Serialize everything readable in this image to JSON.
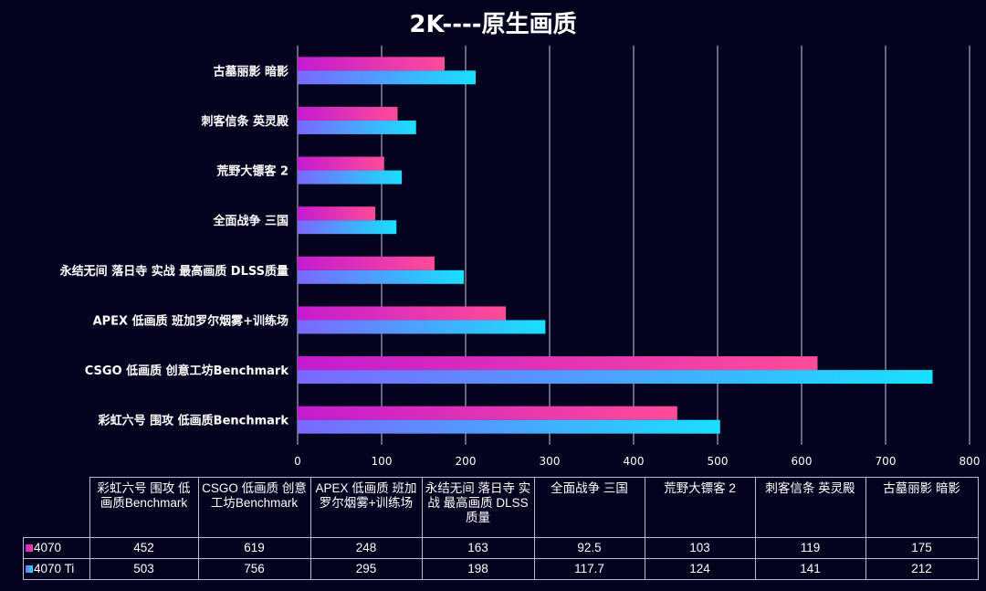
{
  "chart_data": {
    "type": "bar",
    "orientation": "horizontal",
    "title": "2K----原生画质",
    "categories": [
      "彩虹六号 围攻 低画质Benchmark",
      "CSGO 低画质 创意工坊Benchmark",
      "APEX 低画质 班加罗尔烟雾+训练场",
      "永结无间 落日寺 实战 最高画质 DLSS质量",
      "全面战争 三国",
      "荒野大镖客 2",
      "刺客信条 英灵殿",
      "古墓丽影 暗影"
    ],
    "series": [
      {
        "name": "4070",
        "values": [
          452,
          619,
          248,
          163,
          92.5,
          103,
          119,
          175
        ],
        "gradient": [
          "#c41bd0",
          "#ff4b98"
        ]
      },
      {
        "name": "4070 Ti",
        "values": [
          503,
          756,
          295,
          198,
          117.7,
          124,
          141,
          212
        ],
        "gradient": [
          "#7b68ff",
          "#18e0ff"
        ]
      }
    ],
    "xlim": [
      0,
      800
    ],
    "xticks": [
      "0",
      "100",
      "200",
      "300",
      "400",
      "500",
      "600",
      "700",
      "800"
    ],
    "grid": true,
    "legend": "data-table-below",
    "xlabel": "",
    "ylabel": ""
  },
  "table": {
    "headers": [
      "彩虹六号 围攻 低画质Benchmark",
      "CSGO 低画质 创意工坊Benchmark",
      "APEX 低画质 班加罗尔烟雾+训练场",
      "永结无间 落日寺 实战 最高画质 DLSS质量",
      "全面战争 三国",
      "荒野大镖客 2",
      "刺客信条 英灵殿",
      "古墓丽影 暗影"
    ],
    "rows": [
      {
        "label": "4070",
        "cells": [
          "452",
          "619",
          "248",
          "163",
          "92.5",
          "103",
          "119",
          "175"
        ]
      },
      {
        "label": "4070 Ti",
        "cells": [
          "503",
          "756",
          "295",
          "198",
          "117.7",
          "124",
          "141",
          "212"
        ]
      }
    ]
  },
  "colors": {
    "background": "#03031f",
    "grid": "#c8c8d8",
    "text": "#ffffff"
  }
}
